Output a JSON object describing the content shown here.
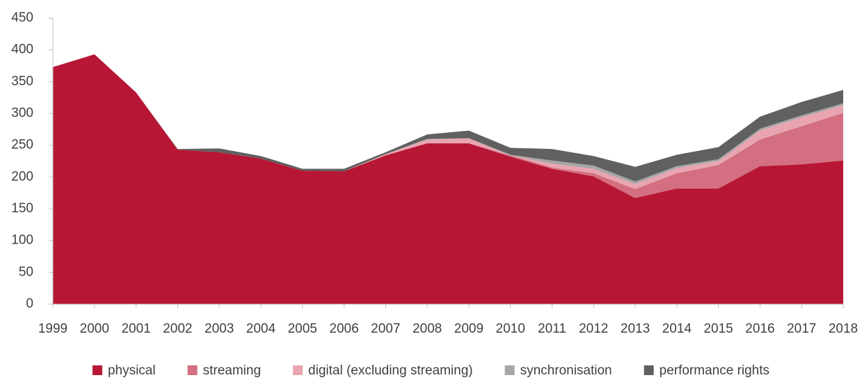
{
  "chart_data": {
    "type": "stacked_area",
    "categories": [
      "1999",
      "2000",
      "2001",
      "2002",
      "2003",
      "2004",
      "2005",
      "2006",
      "2007",
      "2008",
      "2009",
      "2010",
      "2011",
      "2012",
      "2013",
      "2014",
      "2015",
      "2016",
      "2017",
      "2018"
    ],
    "series": [
      {
        "name": "physical",
        "color": "#b71735",
        "values": [
          373,
          393,
          333,
          243,
          239,
          229,
          210,
          209,
          234,
          253,
          253,
          232,
          213,
          201,
          167,
          182,
          182,
          217,
          220,
          226
        ]
      },
      {
        "name": "streaming",
        "color": "#d36f80",
        "values": [
          0,
          0,
          0,
          0,
          0,
          0,
          0,
          0,
          0,
          0,
          0,
          2,
          2,
          5,
          14,
          24,
          37,
          42,
          60,
          75
        ]
      },
      {
        "name": "digital (excluding streaming)",
        "color": "#e8a5b1",
        "values": [
          0,
          0,
          0,
          0,
          0,
          0,
          0,
          0,
          2,
          6,
          8,
          0,
          6,
          7,
          8,
          8,
          6,
          14,
          14,
          12
        ]
      },
      {
        "name": "synchronisation",
        "color": "#a6a6a6",
        "values": [
          0,
          0,
          0,
          0,
          0,
          0,
          0,
          0,
          0,
          1,
          0,
          1,
          5,
          5,
          4,
          3,
          3,
          3,
          3,
          3
        ]
      },
      {
        "name": "performance rights",
        "color": "#606060",
        "values": [
          0,
          0,
          0,
          1,
          6,
          4,
          3,
          4,
          3,
          7,
          12,
          11,
          18,
          15,
          23,
          18,
          19,
          19,
          21,
          21
        ]
      }
    ],
    "ylim": [
      0,
      450
    ],
    "yticks": [
      0,
      50,
      100,
      150,
      200,
      250,
      300,
      350,
      400,
      450
    ],
    "grid": false,
    "legend": "bottom"
  }
}
